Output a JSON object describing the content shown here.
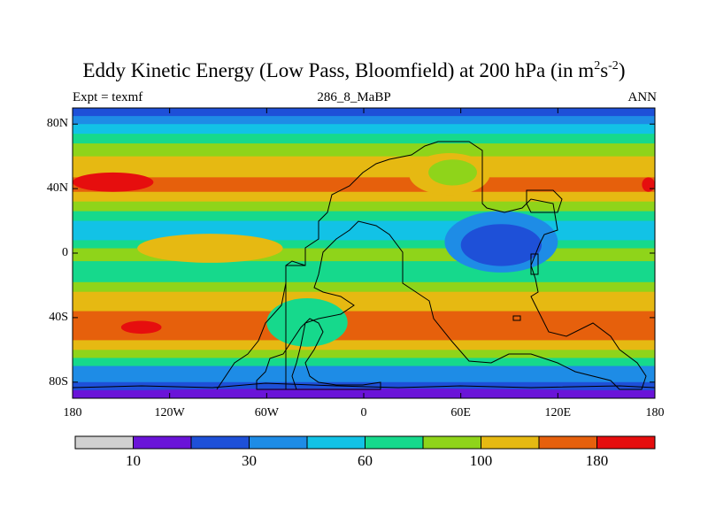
{
  "header": {
    "title_main": "Eddy Kinetic Energy (Low Pass, Bloomfield) at 200 hPa (in m",
    "title_sup1": "2",
    "title_mid": "s",
    "title_sup2": "-2",
    "title_end": ")",
    "left_label": "Expt = texmf",
    "center_label": "286_8_MaBP",
    "right_label": "ANN"
  },
  "chart_data": {
    "type": "heatmap",
    "title": "Eddy Kinetic Energy (Low Pass, Bloomfield) at 200 hPa (in m^2 s^-2)",
    "subtitle": "286_8_MaBP",
    "xlabel": "",
    "ylabel": "",
    "xlim": [
      -180,
      180
    ],
    "ylim": [
      -90,
      90
    ],
    "x_ticks": [
      {
        "value": -180,
        "label": "180"
      },
      {
        "value": -120,
        "label": "120W"
      },
      {
        "value": -60,
        "label": "60W"
      },
      {
        "value": 0,
        "label": "0"
      },
      {
        "value": 60,
        "label": "60E"
      },
      {
        "value": 120,
        "label": "120E"
      },
      {
        "value": 180,
        "label": "180"
      }
    ],
    "y_ticks": [
      {
        "value": 80,
        "label": "80N"
      },
      {
        "value": 40,
        "label": "40N"
      },
      {
        "value": 0,
        "label": "0"
      },
      {
        "value": -40,
        "label": "40S"
      },
      {
        "value": -80,
        "label": "80S"
      }
    ],
    "levels": [
      10,
      20,
      30,
      45,
      60,
      80,
      100,
      140,
      180
    ],
    "colorbar_labels": [
      {
        "level": 10,
        "label": "10"
      },
      {
        "level": 30,
        "label": "30"
      },
      {
        "level": 60,
        "label": "60"
      },
      {
        "level": 100,
        "label": "100"
      },
      {
        "level": 180,
        "label": "180"
      }
    ],
    "colors": [
      "#d0d0d0",
      "#6a14d8",
      "#1e50d8",
      "#1e8ce6",
      "#12c2e6",
      "#16d98c",
      "#8fd41a",
      "#e6b912",
      "#e6600c",
      "#e60e0e"
    ],
    "band_profile": [
      {
        "lat": 90,
        "value": 30
      },
      {
        "lat": 85,
        "value": 25
      },
      {
        "lat": 80,
        "value": 40
      },
      {
        "lat": 74,
        "value": 55
      },
      {
        "lat": 68,
        "value": 70
      },
      {
        "lat": 60,
        "value": 90
      },
      {
        "lat": 53,
        "value": 120
      },
      {
        "lat": 47,
        "value": 150
      },
      {
        "lat": 43,
        "value": 165
      },
      {
        "lat": 38,
        "value": 140
      },
      {
        "lat": 32,
        "value": 110
      },
      {
        "lat": 26,
        "value": 80
      },
      {
        "lat": 20,
        "value": 60
      },
      {
        "lat": 14,
        "value": 50
      },
      {
        "lat": 8,
        "value": 60
      },
      {
        "lat": 3,
        "value": 80
      },
      {
        "lat": 0,
        "value": 90
      },
      {
        "lat": -5,
        "value": 80
      },
      {
        "lat": -12,
        "value": 60
      },
      {
        "lat": -18,
        "value": 70
      },
      {
        "lat": -24,
        "value": 90
      },
      {
        "lat": -30,
        "value": 110
      },
      {
        "lat": -36,
        "value": 130
      },
      {
        "lat": -42,
        "value": 150
      },
      {
        "lat": -48,
        "value": 160
      },
      {
        "lat": -54,
        "value": 130
      },
      {
        "lat": -60,
        "value": 100
      },
      {
        "lat": -65,
        "value": 70
      },
      {
        "lat": -70,
        "value": 50
      },
      {
        "lat": -75,
        "value": 35
      },
      {
        "lat": -80,
        "value": 25
      },
      {
        "lat": -85,
        "value": 15
      },
      {
        "lat": -90,
        "value": 15
      }
    ],
    "features": [
      {
        "name": "north-pacific-maximum",
        "lon_min": -180,
        "lon_max": -130,
        "lat_min": 38,
        "lat_max": 50,
        "value": 190
      },
      {
        "name": "north-atlantic-maximum",
        "lon_min": 172,
        "lon_max": 180,
        "lat_min": 38,
        "lat_max": 47,
        "value": 190
      },
      {
        "name": "eurasia-jet-weakening",
        "lon_min": 28,
        "lon_max": 78,
        "lat_min": 36,
        "lat_max": 62,
        "value": 105
      },
      {
        "name": "eurasia-jet-core",
        "lon_min": 40,
        "lon_max": 70,
        "lat_min": 42,
        "lat_max": 58,
        "value": 85
      },
      {
        "name": "tropical-africa-minimum",
        "lon_min": 50,
        "lon_max": 120,
        "lat_min": -12,
        "lat_max": 26,
        "value": 40
      },
      {
        "name": "tropical-africa-core",
        "lon_min": 60,
        "lon_max": 110,
        "lat_min": -8,
        "lat_max": 18,
        "value": 25
      },
      {
        "name": "tropical-pacific-maximum",
        "lon_min": -140,
        "lon_max": -50,
        "lat_min": -6,
        "lat_max": 12,
        "value": 120
      },
      {
        "name": "south-pacific-maximum",
        "lon_min": -150,
        "lon_max": -125,
        "lat_min": -50,
        "lat_max": -42,
        "value": 190
      },
      {
        "name": "south-america-band",
        "lon_min": -60,
        "lon_max": -10,
        "lat_min": -58,
        "lat_max": -28,
        "value": 75
      },
      {
        "name": "antarctic-coast-minimum",
        "lon_min": -180,
        "lon_max": 180,
        "lat_min": -90,
        "lat_max": -84,
        "value": 15
      }
    ]
  }
}
